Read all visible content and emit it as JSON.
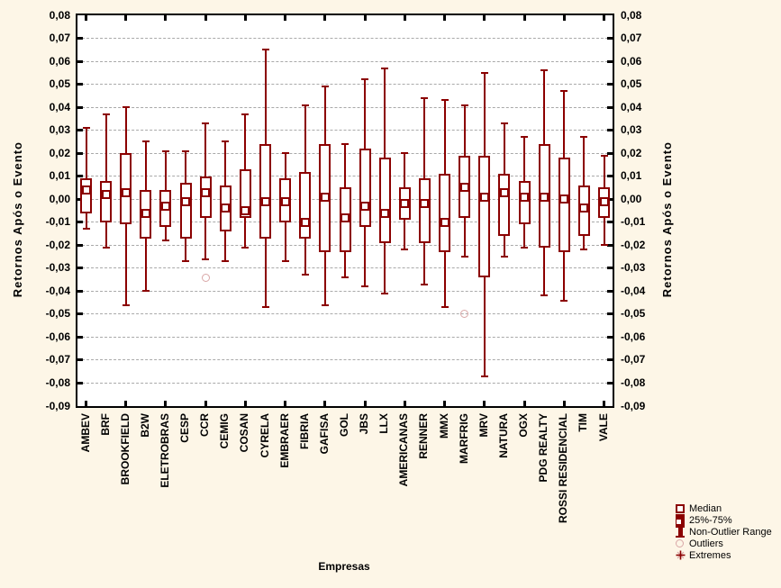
{
  "figure": {
    "x_axis_title": "Empresas",
    "y_axis_title_left": "Retornos Após o Evento",
    "y_axis_title_right": "Retornos Após o Evento",
    "colors": {
      "box": "#8b0000",
      "outlier": "#d9a7a7",
      "background": "#fdf6e7",
      "plot_background": "#ffffff",
      "gridline": "#a9a9a9",
      "frame": "#000000"
    }
  },
  "chart_data": {
    "type": "boxplot",
    "title": "",
    "xlabel": "Empresas",
    "ylabel": "Retornos Após o Evento",
    "ylim": [
      -0.09,
      0.08
    ],
    "ytick_step": 0.01,
    "ytick_labels": [
      "0,08",
      "0,07",
      "0,06",
      "0,05",
      "0,04",
      "0,03",
      "0,02",
      "0,01",
      "0,00",
      "-0,01",
      "-0,02",
      "-0,03",
      "-0,04",
      "-0,05",
      "-0,06",
      "-0,07",
      "-0,08",
      "-0,09"
    ],
    "xtick_every": 2,
    "grid": true,
    "categories": [
      "AMBEV",
      "BRF",
      "BROOKFIELD",
      "B2W",
      "ELETROBRAS",
      "CESP",
      "CCR",
      "CEMIG",
      "COSAN",
      "CYRELA",
      "EMBRAER",
      "FIBRIA",
      "GAFISA",
      "GOL",
      "JBS",
      "LLX",
      "AMERICANAS",
      "RENNER",
      "MMX",
      "MARFRIG",
      "MRV",
      "NATURA",
      "OGX",
      "PDG REALTY",
      "ROSSI RESIDENCIAL",
      "TIM",
      "VALE"
    ],
    "boxes": [
      {
        "company": "AMBEV",
        "whisker_low": -0.013,
        "q1": -0.006,
        "median": 0.004,
        "q3": 0.009,
        "whisker_high": 0.031,
        "outliers": []
      },
      {
        "company": "BRF",
        "whisker_low": -0.021,
        "q1": -0.01,
        "median": 0.002,
        "q3": 0.008,
        "whisker_high": 0.037,
        "outliers": []
      },
      {
        "company": "BROOKFIELD",
        "whisker_low": -0.046,
        "q1": -0.011,
        "median": 0.003,
        "q3": 0.02,
        "whisker_high": 0.04,
        "outliers": []
      },
      {
        "company": "B2W",
        "whisker_low": -0.04,
        "q1": -0.017,
        "median": -0.006,
        "q3": 0.004,
        "whisker_high": 0.025,
        "outliers": []
      },
      {
        "company": "ELETROBRAS",
        "whisker_low": -0.018,
        "q1": -0.012,
        "median": -0.003,
        "q3": 0.004,
        "whisker_high": 0.021,
        "outliers": []
      },
      {
        "company": "CESP",
        "whisker_low": -0.027,
        "q1": -0.017,
        "median": -0.001,
        "q3": 0.007,
        "whisker_high": 0.021,
        "outliers": []
      },
      {
        "company": "CCR",
        "whisker_low": -0.026,
        "q1": -0.008,
        "median": 0.003,
        "q3": 0.01,
        "whisker_high": 0.033,
        "outliers": [
          -0.034
        ]
      },
      {
        "company": "CEMIG",
        "whisker_low": -0.027,
        "q1": -0.014,
        "median": -0.004,
        "q3": 0.006,
        "whisker_high": 0.025,
        "outliers": []
      },
      {
        "company": "COSAN",
        "whisker_low": -0.021,
        "q1": -0.008,
        "median": -0.005,
        "q3": 0.013,
        "whisker_high": 0.037,
        "outliers": []
      },
      {
        "company": "CYRELA",
        "whisker_low": -0.047,
        "q1": -0.017,
        "median": -0.001,
        "q3": 0.024,
        "whisker_high": 0.065,
        "outliers": []
      },
      {
        "company": "EMBRAER",
        "whisker_low": -0.027,
        "q1": -0.01,
        "median": -0.001,
        "q3": 0.009,
        "whisker_high": 0.02,
        "outliers": []
      },
      {
        "company": "FIBRIA",
        "whisker_low": -0.033,
        "q1": -0.017,
        "median": -0.01,
        "q3": 0.012,
        "whisker_high": 0.041,
        "outliers": []
      },
      {
        "company": "GAFISA",
        "whisker_low": -0.046,
        "q1": -0.023,
        "median": 0.001,
        "q3": 0.024,
        "whisker_high": 0.049,
        "outliers": []
      },
      {
        "company": "GOL",
        "whisker_low": -0.034,
        "q1": -0.023,
        "median": -0.008,
        "q3": 0.005,
        "whisker_high": 0.024,
        "outliers": []
      },
      {
        "company": "JBS",
        "whisker_low": -0.038,
        "q1": -0.012,
        "median": -0.003,
        "q3": 0.022,
        "whisker_high": 0.052,
        "outliers": []
      },
      {
        "company": "LLX",
        "whisker_low": -0.041,
        "q1": -0.019,
        "median": -0.006,
        "q3": 0.018,
        "whisker_high": 0.057,
        "outliers": []
      },
      {
        "company": "AMERICANAS",
        "whisker_low": -0.022,
        "q1": -0.009,
        "median": -0.002,
        "q3": 0.005,
        "whisker_high": 0.02,
        "outliers": []
      },
      {
        "company": "RENNER",
        "whisker_low": -0.037,
        "q1": -0.019,
        "median": -0.002,
        "q3": 0.009,
        "whisker_high": 0.044,
        "outliers": []
      },
      {
        "company": "MMX",
        "whisker_low": -0.047,
        "q1": -0.023,
        "median": -0.01,
        "q3": 0.011,
        "whisker_high": 0.043,
        "outliers": []
      },
      {
        "company": "MARFRIG",
        "whisker_low": -0.025,
        "q1": -0.008,
        "median": 0.005,
        "q3": 0.019,
        "whisker_high": 0.041,
        "outliers": [
          -0.05
        ]
      },
      {
        "company": "MRV",
        "whisker_low": -0.077,
        "q1": -0.034,
        "median": 0.001,
        "q3": 0.019,
        "whisker_high": 0.055,
        "outliers": []
      },
      {
        "company": "NATURA",
        "whisker_low": -0.025,
        "q1": -0.016,
        "median": 0.003,
        "q3": 0.011,
        "whisker_high": 0.033,
        "outliers": []
      },
      {
        "company": "OGX",
        "whisker_low": -0.021,
        "q1": -0.011,
        "median": 0.001,
        "q3": 0.008,
        "whisker_high": 0.027,
        "outliers": []
      },
      {
        "company": "PDG REALTY",
        "whisker_low": -0.042,
        "q1": -0.021,
        "median": 0.001,
        "q3": 0.024,
        "whisker_high": 0.056,
        "outliers": []
      },
      {
        "company": "ROSSI RESIDENCIAL",
        "whisker_low": -0.044,
        "q1": -0.023,
        "median": 0.0,
        "q3": 0.018,
        "whisker_high": 0.047,
        "outliers": []
      },
      {
        "company": "TIM",
        "whisker_low": -0.022,
        "q1": -0.016,
        "median": -0.004,
        "q3": 0.006,
        "whisker_high": 0.027,
        "outliers": []
      },
      {
        "company": "VALE",
        "whisker_low": -0.02,
        "q1": -0.008,
        "median": -0.001,
        "q3": 0.005,
        "whisker_high": 0.019,
        "outliers": []
      }
    ],
    "legend_position": "bottom-right"
  },
  "legend": {
    "items": [
      {
        "label": "Median",
        "icon": "median-icon"
      },
      {
        "label": "25%-75%",
        "icon": "iqr-box-icon"
      },
      {
        "label": "Non-Outlier Range",
        "icon": "non-outlier-range-icon"
      },
      {
        "label": "Outliers",
        "icon": "outlier-icon"
      },
      {
        "label": "Extremes",
        "icon": "extreme-icon"
      }
    ]
  }
}
